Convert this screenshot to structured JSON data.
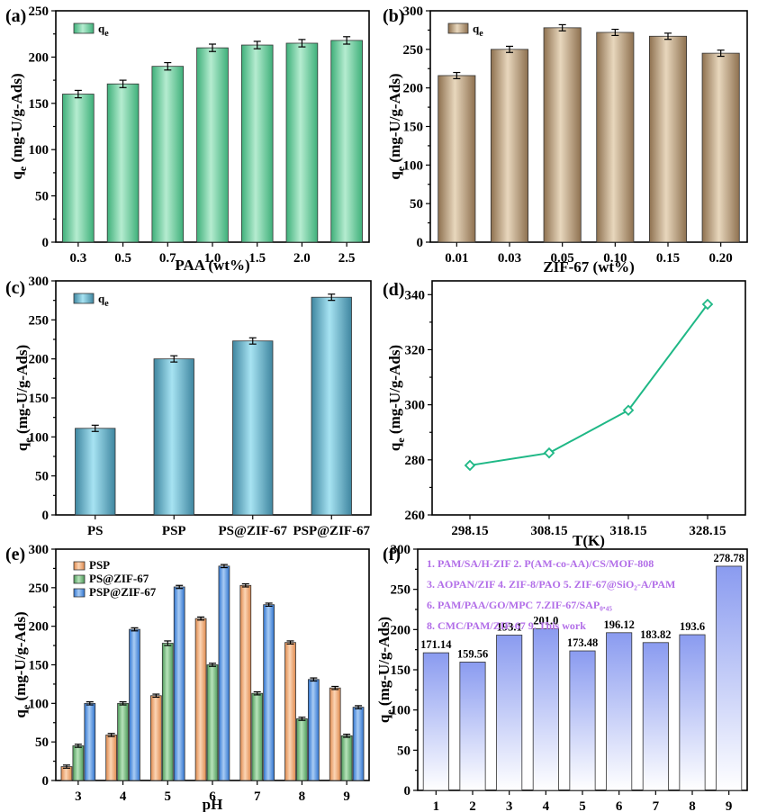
{
  "chart_data": [
    {
      "id": "a",
      "type": "bar",
      "panel_label": "(a)",
      "xlabel": "PAA (wt%)",
      "ylabel": "qe (mg-U/g-Ads)",
      "categories": [
        "0.3",
        "0.5",
        "0.7",
        "1.0",
        "1.5",
        "2.0",
        "2.5"
      ],
      "ylim": [
        0,
        250
      ],
      "yticks": [
        0,
        50,
        100,
        150,
        200,
        250
      ],
      "series": [
        {
          "name": "qe",
          "values": [
            160,
            171,
            190,
            210,
            213,
            215,
            218
          ],
          "errors": [
            4,
            4,
            4,
            4,
            4,
            4,
            4
          ],
          "color": "#3fb07a",
          "color_light": "#b5ecd0"
        }
      ],
      "legend": "top-left"
    },
    {
      "id": "b",
      "type": "bar",
      "panel_label": "(b)",
      "xlabel": "ZIF-67 (wt%)",
      "ylabel": "qe (mg-U/g-Ads)",
      "categories": [
        "0.01",
        "0.03",
        "0.05",
        "0.10",
        "0.15",
        "0.20"
      ],
      "ylim": [
        0,
        300
      ],
      "yticks": [
        0,
        50,
        100,
        150,
        200,
        250,
        300
      ],
      "series": [
        {
          "name": "qe",
          "values": [
            216,
            250,
            278,
            272,
            267,
            245
          ],
          "errors": [
            4,
            4,
            4,
            4,
            4,
            4
          ],
          "color": "#8e7150",
          "color_light": "#e8d7bd"
        }
      ],
      "legend": "top-left"
    },
    {
      "id": "c",
      "type": "bar",
      "panel_label": "(c)",
      "xlabel": "",
      "ylabel": "qe (mg-U/g-Ads)",
      "categories": [
        "PS",
        "PSP",
        "PS@ZIF-67",
        "PSP@ZIF-67"
      ],
      "ylim": [
        0,
        300
      ],
      "yticks": [
        0,
        50,
        100,
        150,
        200,
        250,
        300
      ],
      "series": [
        {
          "name": "qe",
          "values": [
            111,
            200,
            223,
            279
          ],
          "errors": [
            4,
            4,
            4,
            4
          ],
          "color": "#3f86a0",
          "color_light": "#a7e3f2"
        }
      ],
      "legend": "top-left"
    },
    {
      "id": "d",
      "type": "line",
      "panel_label": "(d)",
      "xlabel": "T(K)",
      "ylabel": "qe (mg-U/g-Ads)",
      "x": [
        "298.15",
        "308.15",
        "318.15",
        "328.15"
      ],
      "ylim": [
        260,
        345
      ],
      "yticks": [
        260,
        280,
        300,
        320,
        340
      ],
      "series": [
        {
          "values": [
            278,
            282.5,
            298,
            336.5
          ],
          "color": "#1fb886"
        }
      ]
    },
    {
      "id": "e",
      "type": "bar",
      "panel_label": "(e)",
      "xlabel": "pH",
      "ylabel": "qe (mg-U/g-Ads)",
      "categories": [
        "3",
        "4",
        "5",
        "6",
        "7",
        "8",
        "9"
      ],
      "ylim": [
        0,
        300
      ],
      "yticks": [
        0,
        50,
        100,
        150,
        200,
        250,
        300
      ],
      "series": [
        {
          "name": "PSP",
          "values": [
            18,
            59,
            110,
            210,
            253,
            179,
            120
          ],
          "errors": [
            2,
            2,
            2,
            2,
            2,
            2,
            2
          ],
          "color": "#e08a4e",
          "color_light": "#fbd5b5"
        },
        {
          "name": "PS@ZIF-67",
          "values": [
            45,
            100,
            178,
            150,
            113,
            80,
            58
          ],
          "errors": [
            2,
            2,
            3,
            2,
            2,
            2,
            2
          ],
          "color": "#4e9a5a",
          "color_light": "#b7e3ba"
        },
        {
          "name": "PSP@ZIF-67",
          "values": [
            100,
            196,
            251,
            278,
            228,
            131,
            95
          ],
          "errors": [
            2,
            2,
            2,
            2,
            2,
            2,
            2
          ],
          "color": "#2f74d0",
          "color_light": "#a9ccf4"
        }
      ],
      "legend": "top-left"
    },
    {
      "id": "f",
      "type": "bar",
      "panel_label": "(f)",
      "xlabel": "",
      "ylabel": "qe (mg-U/g-Ads)",
      "categories": [
        "1",
        "2",
        "3",
        "4",
        "5",
        "6",
        "7",
        "8",
        "9"
      ],
      "ylim": [
        0,
        300
      ],
      "yticks": [
        0,
        50,
        100,
        150,
        200,
        250,
        300
      ],
      "series": [
        {
          "values": [
            171.14,
            159.56,
            193.1,
            201.0,
            173.48,
            196.12,
            183.82,
            193.6,
            278.78
          ],
          "color": "#8a9bf0",
          "color_light": "#ffffff"
        }
      ],
      "data_labels": [
        "171.14",
        "159.56",
        "193.1",
        "201.0",
        "173.48",
        "196.12",
        "183.82",
        "193.6",
        "278.78"
      ],
      "notes": [
        "1. PAM/SA/H-ZIF     2. P(AM-co-AA)/CS/MOF-808",
        "3. AOPAN/ZIF  4. ZIF-8/PAO  5. ZIF-67@SiO₂-A/PAM",
        "6. PAM/PAA/GO/MPC   7.ZIF-67/SAP₀.₄₅",
        "8. CMC/PAM/ZIF-67        9. This work"
      ]
    }
  ]
}
